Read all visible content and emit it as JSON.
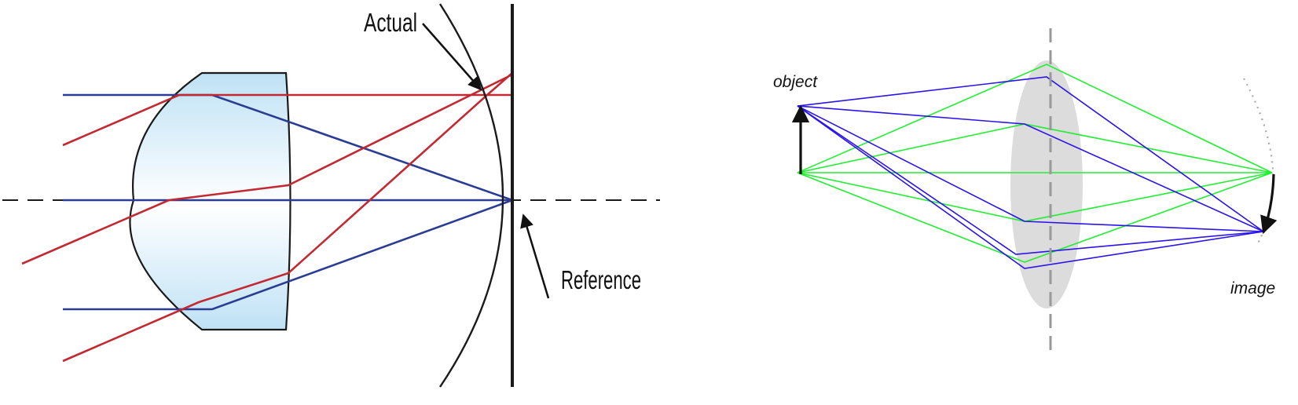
{
  "left_diagram": {
    "labels": {
      "actual": "Actual",
      "reference": "Reference"
    },
    "colors": {
      "ray_blue": "#2b3d93",
      "ray_red": "#c22a33",
      "lens_stroke": "#1a1a1a",
      "lens_fill_light": "#ffffff",
      "lens_fill_dark": "#bfe2f5",
      "axis": "#1a1a1a"
    }
  },
  "right_diagram": {
    "labels": {
      "object": "object",
      "image": "image"
    },
    "colors": {
      "ray_blue": "#2b14ea",
      "ray_green": "#22ee33",
      "lens_fill": "#dcdcdc",
      "axis": "#999999",
      "arrow": "#111111",
      "dotted_arc": "#aaaaaa"
    }
  }
}
